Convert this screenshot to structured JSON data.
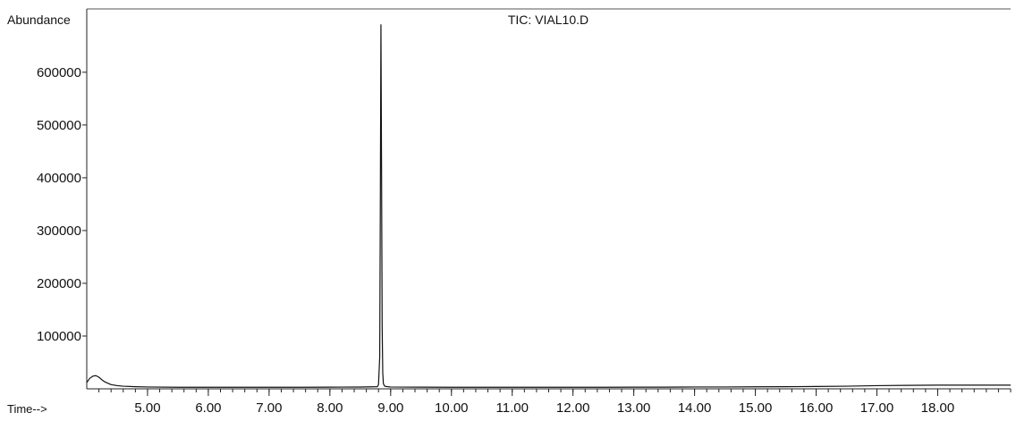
{
  "chart_data": {
    "type": "line",
    "title": "TIC: VIAL10.D",
    "ylabel": "Abundance",
    "xlabel": "Time-->",
    "xlim": [
      4.0,
      19.2
    ],
    "ylim": [
      0,
      720000
    ],
    "x_ticks": [
      5.0,
      6.0,
      7.0,
      8.0,
      9.0,
      10.0,
      11.0,
      12.0,
      13.0,
      14.0,
      15.0,
      16.0,
      17.0,
      18.0
    ],
    "x_tick_labels": [
      "5.00",
      "6.00",
      "7.00",
      "8.00",
      "9.00",
      "10.00",
      "11.00",
      "12.00",
      "13.00",
      "14.00",
      "15.00",
      "16.00",
      "17.00",
      "18.00"
    ],
    "y_ticks": [
      100000,
      200000,
      300000,
      400000,
      500000,
      600000
    ],
    "y_tick_labels": [
      "100000",
      "200000",
      "300000",
      "400000",
      "500000",
      "600000"
    ],
    "grid": false,
    "legend": "none",
    "series": [
      {
        "color": "#111111",
        "x": [
          4.0,
          4.05,
          4.1,
          4.15,
          4.2,
          4.25,
          4.3,
          4.4,
          4.5,
          4.6,
          4.8,
          5.0,
          5.5,
          6.0,
          6.5,
          7.0,
          7.5,
          8.0,
          8.5,
          8.78,
          8.8,
          8.82,
          8.83,
          8.84,
          8.85,
          8.86,
          8.87,
          8.88,
          8.9,
          8.95,
          9.0,
          9.5,
          10.0,
          10.5,
          11.0,
          11.5,
          12.0,
          12.5,
          13.0,
          13.5,
          14.0,
          14.5,
          15.0,
          15.5,
          16.0,
          16.5,
          17.0,
          17.5,
          18.0,
          18.5,
          19.0,
          19.2
        ],
        "y": [
          12000,
          20000,
          24000,
          25000,
          22000,
          17000,
          13000,
          8000,
          6000,
          5000,
          4000,
          3500,
          3000,
          3000,
          3000,
          3000,
          3000,
          3200,
          3400,
          4000,
          8000,
          60000,
          350000,
          690000,
          420000,
          120000,
          30000,
          10000,
          5000,
          4000,
          3500,
          3200,
          3000,
          3000,
          3000,
          3000,
          3000,
          3000,
          3200,
          3200,
          3500,
          3500,
          3800,
          4000,
          4500,
          5000,
          6000,
          6500,
          7000,
          7000,
          7000,
          7000
        ]
      }
    ]
  }
}
